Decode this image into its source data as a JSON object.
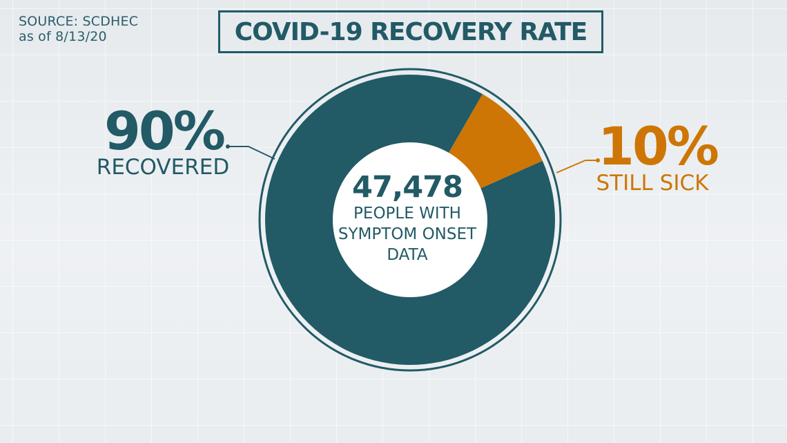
{
  "source": {
    "line1": "SOURCE: SCDHEC",
    "line2": "as of 8/13/20"
  },
  "colors": {
    "recovered": "#225a66",
    "still_sick": "#cd7606",
    "center": "#ffffff"
  },
  "chart_data": {
    "type": "pie",
    "title": "COVID-19 RECOVERY RATE",
    "slices": [
      {
        "label": "RECOVERED",
        "value": 90,
        "display": "90%"
      },
      {
        "label": "STILL SICK",
        "value": 10,
        "display": "10%"
      }
    ],
    "center_value": "47,478",
    "center_text": "PEOPLE WITH SYMPTOM ONSET DATA"
  }
}
